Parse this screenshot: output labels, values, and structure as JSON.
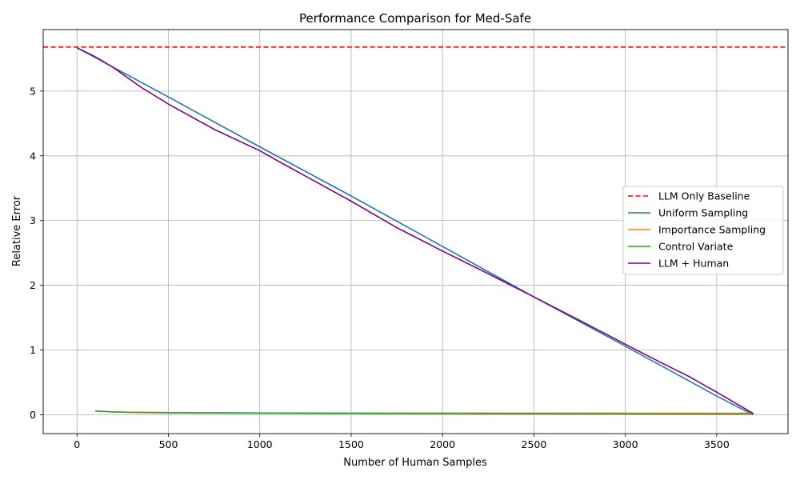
{
  "chart_data": {
    "type": "line",
    "title": "Performance Comparison for Med-Safe",
    "xlabel": "Number of Human Samples",
    "ylabel": "Relative Error",
    "xlim": [
      -185,
      3890
    ],
    "ylim": [
      -0.29,
      5.95
    ],
    "xticks": [
      0,
      500,
      1000,
      1500,
      2000,
      2500,
      3000,
      3500
    ],
    "yticks": [
      0,
      1,
      2,
      3,
      4,
      5
    ],
    "grid": true,
    "legend_position": "center-right",
    "baseline": {
      "name": "LLM Only Baseline",
      "value": 5.68,
      "color": "#ff0000",
      "style": "dashed"
    },
    "series": [
      {
        "name": "Uniform Sampling",
        "color": "#1f77b4",
        "x": [
          0,
          500,
          1000,
          1500,
          2000,
          2500,
          3000,
          3500,
          3700
        ],
        "y": [
          5.67,
          4.91,
          4.14,
          3.38,
          2.6,
          1.82,
          1.06,
          0.29,
          0.0
        ]
      },
      {
        "name": "Importance Sampling",
        "color": "#ff7f0e",
        "x": [
          100,
          200,
          300,
          500,
          1000,
          1500,
          2000,
          2500,
          3000,
          3500,
          3700
        ],
        "y": [
          0.06,
          0.045,
          0.04,
          0.035,
          0.03,
          0.028,
          0.027,
          0.026,
          0.025,
          0.025,
          0.025
        ]
      },
      {
        "name": "Control Variate",
        "color": "#2ca02c",
        "x": [
          100,
          200,
          300,
          500,
          1000,
          1500,
          2000,
          2500,
          3000,
          3500,
          3700
        ],
        "y": [
          0.06,
          0.045,
          0.038,
          0.032,
          0.025,
          0.021,
          0.018,
          0.016,
          0.015,
          0.014,
          0.014
        ]
      },
      {
        "name": "LLM + Human",
        "color": "#800080",
        "x": [
          0,
          100,
          200,
          350,
          500,
          750,
          1000,
          1100,
          1500,
          1750,
          2000,
          2250,
          2500,
          2750,
          3000,
          3200,
          3350,
          3500,
          3700
        ],
        "y": [
          5.67,
          5.53,
          5.36,
          5.06,
          4.8,
          4.41,
          4.08,
          3.92,
          3.3,
          2.89,
          2.53,
          2.18,
          1.82,
          1.46,
          1.09,
          0.8,
          0.59,
          0.35,
          0.02
        ]
      }
    ]
  }
}
